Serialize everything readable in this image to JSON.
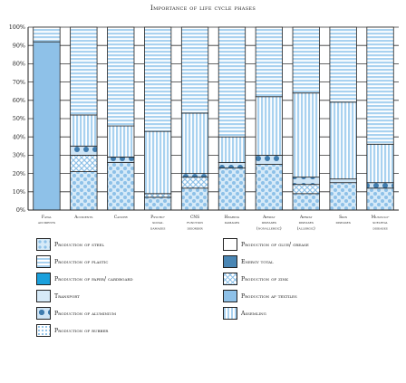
{
  "chart_data": {
    "type": "bar",
    "stacked": true,
    "title": "Importance of life cycle phases",
    "xlabel": "",
    "ylabel": "",
    "ylim": [
      0,
      100
    ],
    "yticks": [
      "0%",
      "10%",
      "20%",
      "30%",
      "40%",
      "50%",
      "60%",
      "70%",
      "80%",
      "90%",
      "100%"
    ],
    "categories": [
      [
        "Fatal",
        "accidents"
      ],
      [
        "Accidents"
      ],
      [
        "Cancer"
      ],
      [
        "Psycho-",
        "social",
        "damages"
      ],
      [
        "CNS",
        "function",
        "disorder"
      ],
      [
        "Hearing",
        "damages"
      ],
      [
        "Airway",
        "diseases",
        "(nonallergic)"
      ],
      [
        "Airway",
        "diseases",
        "(allergic)"
      ],
      [
        "Skin",
        "diseases"
      ],
      [
        "Musculo-",
        "sceletal",
        "diseases"
      ]
    ],
    "series": [
      {
        "name": "Production of steel",
        "values": [
          0,
          21,
          26,
          7,
          12,
          23,
          25,
          9,
          15,
          12
        ]
      },
      {
        "name": "Production of glue/ grease",
        "values": [
          0,
          0,
          0,
          0,
          0,
          0,
          0,
          0,
          0,
          0
        ]
      },
      {
        "name": "Production of plastic",
        "values": [
          0,
          0,
          0,
          0,
          0,
          0,
          0,
          0,
          0,
          0
        ]
      },
      {
        "name": "Energy total",
        "values": [
          0,
          0,
          0,
          0,
          0,
          0,
          0,
          0,
          0,
          0
        ]
      },
      {
        "name": "Production of paper/ cardboard",
        "values": [
          0,
          0,
          0,
          0,
          0,
          0,
          0,
          0,
          0,
          0
        ]
      },
      {
        "name": "Production of zink",
        "values": [
          0,
          9,
          0,
          2,
          6,
          0,
          0,
          5,
          0,
          0
        ]
      },
      {
        "name": "Transport",
        "values": [
          0,
          0,
          0,
          0,
          0,
          0,
          0,
          0,
          0,
          0
        ]
      },
      {
        "name": "Production af textiles",
        "values": [
          92,
          0,
          0,
          0,
          0,
          0,
          0,
          0,
          0,
          0
        ]
      },
      {
        "name": "Production of aluminium",
        "values": [
          0,
          5,
          3,
          0,
          2,
          3,
          5,
          4,
          2,
          3
        ]
      },
      {
        "name": "Assemling",
        "values": [
          0,
          17,
          17,
          34,
          33,
          14,
          32,
          46,
          42,
          21
        ]
      },
      {
        "name": "Production of rubber",
        "values": [
          0,
          0,
          0,
          0,
          0,
          0,
          0,
          0,
          0,
          0
        ]
      }
    ]
  },
  "colors": {
    "dark_blue": "#4a86b4",
    "mid_blue": "#8ec1e8",
    "light_blue": "#d6eaf8",
    "pale_blue": "#eaf4fc",
    "cyan": "#1aa0dc",
    "outline": "#222222"
  }
}
